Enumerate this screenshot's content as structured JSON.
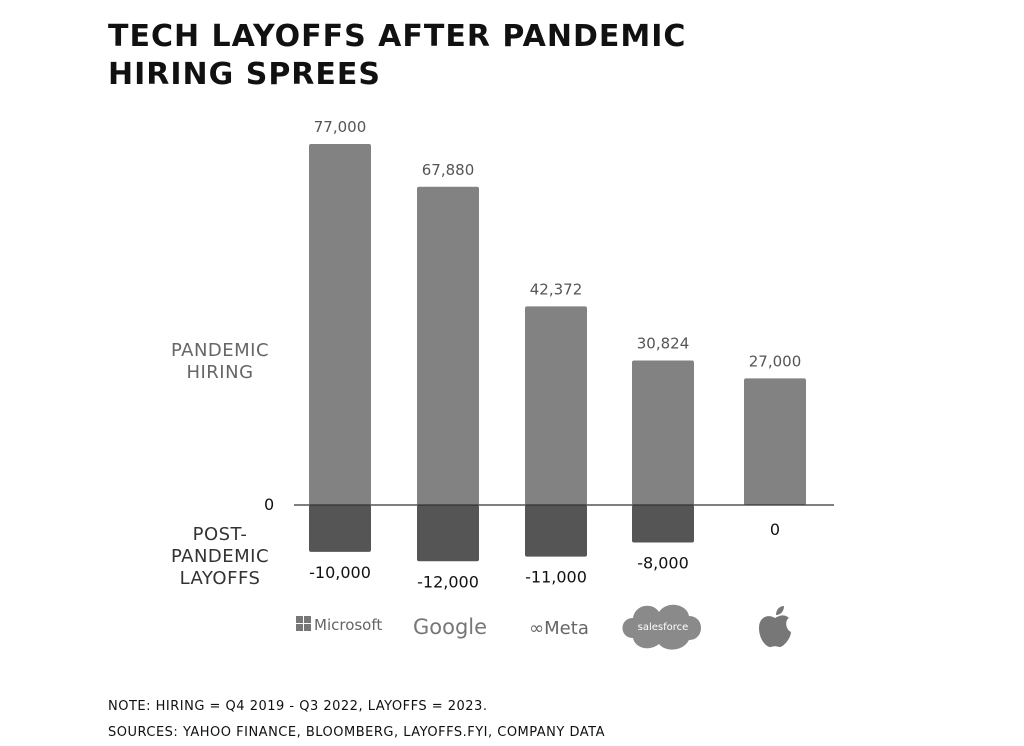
{
  "title": {
    "line1": "TECH LAYOFFS AFTER PANDEMIC",
    "line2": "HIRING SPREES"
  },
  "labels": {
    "hiring": "PANDEMIC HIRING",
    "layoffs": "POST- PANDEMIC LAYOFFS",
    "zero": "0"
  },
  "notes": {
    "note": "NOTE: HIRING = Q4 2019 - Q3 2022, LAYOFFS = 2023.",
    "sources": "SOURCES: YAHOO FINANCE, BLOOMBERG, LAYOFFS.FYI, COMPANY DATA"
  },
  "colors": {
    "hiring_bar": "#828282",
    "layoff_bar": "#555555",
    "axis": "#333333",
    "text": "#111111"
  },
  "chart_data": {
    "type": "bar",
    "categories": [
      "Microsoft",
      "Google",
      "Meta",
      "salesforce",
      "Apple"
    ],
    "category_display": [
      "Microsoft",
      "Google",
      "Meta",
      "salesforce",
      "apple-logo-icon"
    ],
    "series": [
      {
        "name": "PANDEMIC HIRING",
        "values": [
          77000,
          67880,
          42372,
          30824,
          27000
        ]
      },
      {
        "name": "POST-PANDEMIC LAYOFFS",
        "values": [
          -10000,
          -12000,
          -11000,
          -8000,
          0
        ]
      }
    ],
    "value_labels": {
      "hiring": [
        "77,000",
        "67,880",
        "42,372",
        "30,824",
        "27,000"
      ],
      "layoffs": [
        "-10,000",
        "-12,000",
        "-11,000",
        "-8,000",
        "0"
      ]
    },
    "ylim": [
      -12000,
      77000
    ],
    "grid": false
  }
}
